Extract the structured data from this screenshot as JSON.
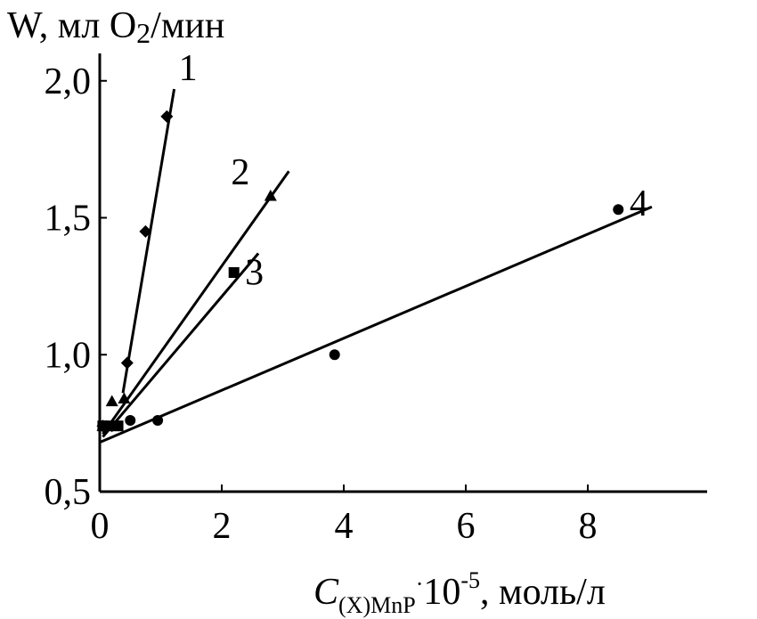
{
  "chart_data": {
    "type": "scatter",
    "title": "",
    "ylabel": {
      "main": "W, мл O",
      "sub": "2",
      "rest": "/мин"
    },
    "xlabel": {
      "main": "C",
      "sub": "(X)MnP",
      "dot": "·",
      "base": "10",
      "sup": "-5",
      "rest": ", моль/л"
    },
    "xlim": [
      0,
      10
    ],
    "ylim": [
      0.5,
      2.1
    ],
    "x_ticks": [
      0,
      2,
      4,
      6,
      8
    ],
    "x_tick_labels": [
      "0",
      "2",
      "4",
      "6",
      "8"
    ],
    "y_ticks": [
      0.5,
      1.0,
      1.5,
      2.0
    ],
    "y_tick_labels": [
      "0,5",
      "1,0",
      "1,5",
      "2,0"
    ],
    "grid": false,
    "series": [
      {
        "name": "1",
        "marker": "diamond",
        "points": [
          [
            0.05,
            0.74
          ],
          [
            0.2,
            0.74
          ],
          [
            0.45,
            0.97
          ],
          [
            0.75,
            1.45
          ],
          [
            1.1,
            1.87
          ]
        ],
        "fit_line": [
          [
            0.38,
            0.86
          ],
          [
            1.22,
            1.97
          ]
        ]
      },
      {
        "name": "2",
        "marker": "triangle",
        "points": [
          [
            0.05,
            0.74
          ],
          [
            0.2,
            0.83
          ],
          [
            0.4,
            0.84
          ],
          [
            2.8,
            1.58
          ]
        ],
        "fit_line": [
          [
            0.05,
            0.71
          ],
          [
            3.1,
            1.67
          ]
        ]
      },
      {
        "name": "3",
        "marker": "square",
        "points": [
          [
            0.05,
            0.74
          ],
          [
            0.1,
            0.74
          ],
          [
            0.3,
            0.74
          ],
          [
            2.2,
            1.3
          ]
        ],
        "fit_line": [
          [
            0.05,
            0.7
          ],
          [
            2.6,
            1.37
          ]
        ]
      },
      {
        "name": "4",
        "marker": "circle",
        "points": [
          [
            0.1,
            0.74
          ],
          [
            0.5,
            0.76
          ],
          [
            0.95,
            0.76
          ],
          [
            3.85,
            1.0
          ],
          [
            8.5,
            1.53
          ]
        ],
        "fit_line": [
          [
            0.0,
            0.68
          ],
          [
            9.05,
            1.54
          ]
        ]
      }
    ]
  }
}
